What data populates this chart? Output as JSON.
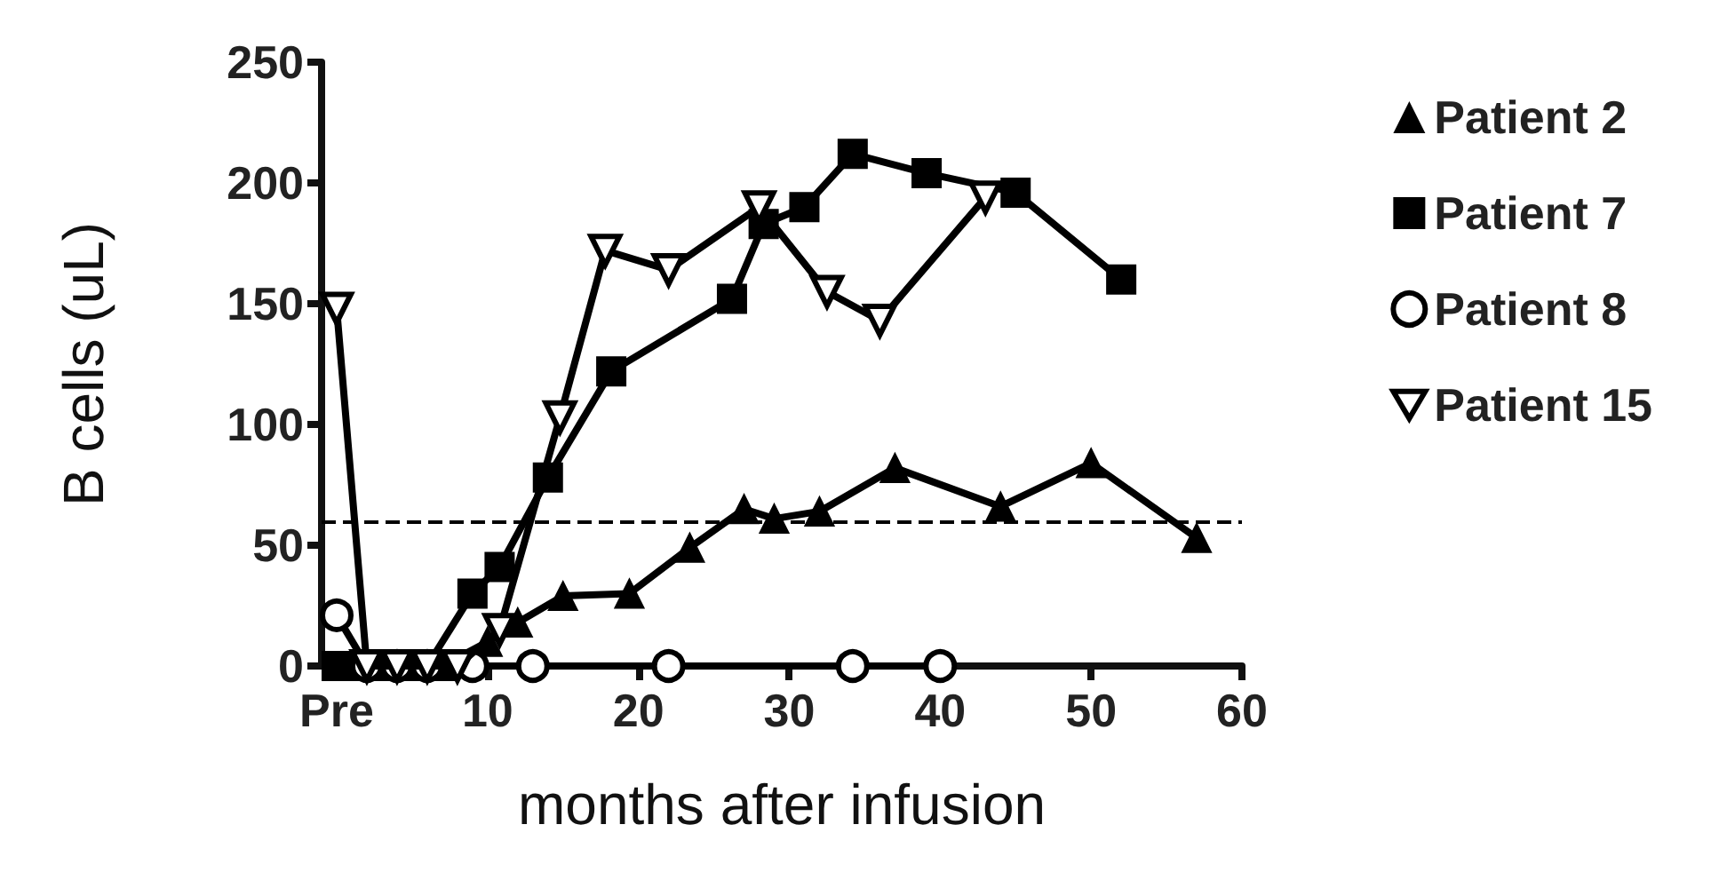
{
  "chart_data": {
    "type": "line",
    "xlabel": "months after infusion",
    "ylabel": "B cells (uL)",
    "xlim": [
      -1,
      60
    ],
    "xticks": [
      {
        "value": 0,
        "label": "Pre"
      },
      10,
      20,
      30,
      40,
      50,
      60
    ],
    "ylim": [
      0,
      250
    ],
    "yticks": [
      0,
      50,
      100,
      150,
      200,
      250
    ],
    "grid": false,
    "legend": "top right",
    "line_style": "solid",
    "ref_lines": [
      {
        "axis": "y",
        "value": 60,
        "line_style": "dashed",
        "color": "#000000"
      }
    ],
    "series": [
      {
        "name": "Patient 2",
        "color": "#000000",
        "marker": "triangle",
        "x": [
          1,
          3,
          5,
          7,
          10,
          12,
          15,
          19.4,
          23.4,
          27,
          29,
          32,
          37,
          44,
          50,
          57
        ],
        "values": [
          0,
          0,
          0,
          0,
          10,
          18,
          29,
          30,
          49,
          65,
          61,
          64,
          82,
          66,
          84,
          53
        ]
      },
      {
        "name": "Patient 7",
        "color": "#000000",
        "marker": "square",
        "x": [
          0,
          2,
          4,
          6,
          9,
          10.8,
          14,
          18.2,
          26.2,
          28.3,
          31,
          34.2,
          39.1,
          45,
          52
        ],
        "values": [
          0,
          0,
          0,
          0,
          30,
          41,
          78,
          122,
          152,
          183,
          190,
          212,
          204,
          196,
          160
        ]
      },
      {
        "name": "Patient 8",
        "color": "#000000",
        "marker": "circle",
        "x": [
          0,
          2,
          4,
          6,
          9,
          13,
          22,
          34.2,
          40
        ],
        "values": [
          21,
          0,
          0,
          0,
          0,
          0,
          0,
          0,
          0
        ]
      },
      {
        "name": "Patient 15",
        "color": "#000000",
        "marker": "triangle-down",
        "x": [
          0,
          2,
          4,
          6,
          8,
          10.8,
          14.8,
          17.8,
          22,
          28,
          32.5,
          36,
          43
        ],
        "values": [
          148,
          0,
          0,
          0,
          0,
          15,
          103,
          172,
          164,
          190,
          155,
          143,
          194
        ]
      }
    ]
  }
}
